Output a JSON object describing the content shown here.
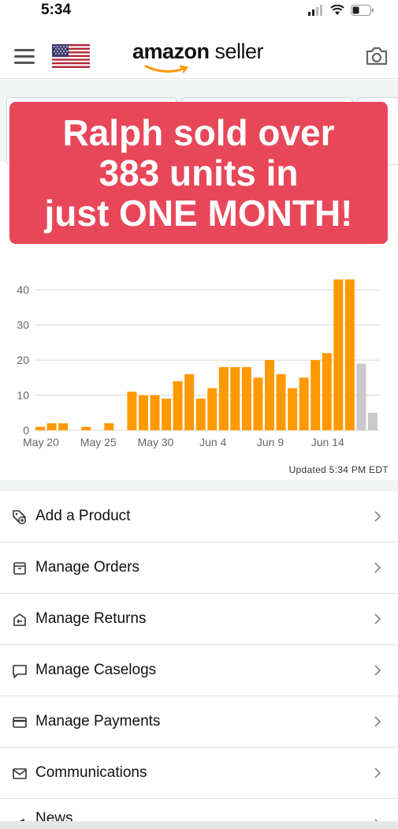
{
  "status_bar": {
    "time": "5:34"
  },
  "header": {
    "brand_main": "amazon",
    "brand_sub": " seller",
    "flag": "us-flag-icon"
  },
  "banner": {
    "lines": [
      "Ralph sold over",
      "383 units in",
      "just ONE MONTH!"
    ],
    "color": "#e8475a"
  },
  "chart_data": {
    "type": "bar",
    "xlabels": [
      "May 20",
      "May 25",
      "May 30",
      "Jun 4",
      "Jun 9",
      "Jun 14"
    ],
    "ytick_labels": [
      "0",
      "10",
      "20",
      "30",
      "40"
    ],
    "ylim": [
      0,
      45
    ],
    "values": [
      1,
      2,
      2,
      0,
      1,
      0,
      2,
      0,
      11,
      10,
      10,
      9,
      14,
      16,
      9,
      12,
      18,
      18,
      18,
      15,
      20,
      16,
      12,
      15,
      20,
      22,
      43,
      43
    ],
    "partial_values": [
      19,
      5
    ],
    "colors": {
      "bar": "#ff9900",
      "partial": "#c9c9c9"
    },
    "grid": true
  },
  "updated_text": "Updated 5:34 PM EDT",
  "menu": [
    {
      "label": "Add a Product",
      "icon": "tag-add-icon"
    },
    {
      "label": "Manage Orders",
      "icon": "box-icon"
    },
    {
      "label": "Manage Returns",
      "icon": "return-box-icon"
    },
    {
      "label": "Manage Caselogs",
      "icon": "chat-bubble-icon"
    },
    {
      "label": "Manage Payments",
      "icon": "credit-card-icon"
    },
    {
      "label": "Communications",
      "icon": "envelope-icon"
    },
    {
      "label": "News",
      "icon": "megaphone-icon"
    }
  ]
}
